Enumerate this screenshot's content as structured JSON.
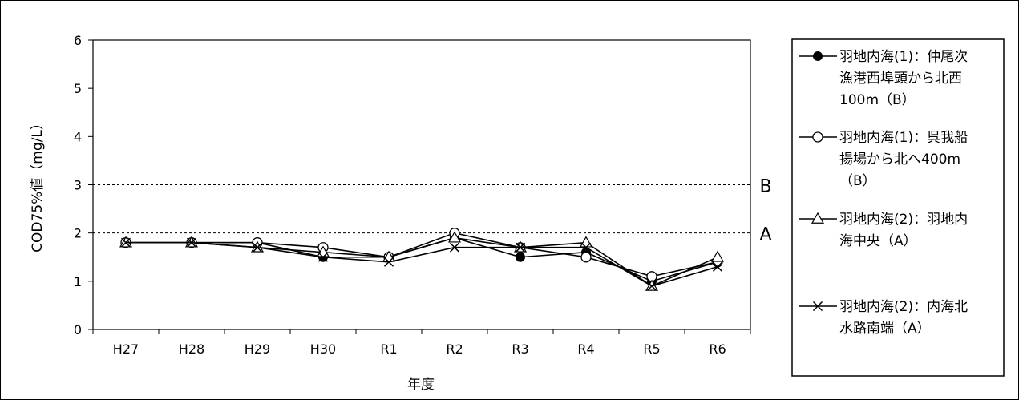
{
  "chart_data": {
    "type": "line",
    "title": "",
    "xlabel": "年度",
    "ylabel": "COD75%値（mg/L）",
    "ylim": [
      0,
      6
    ],
    "yticks": [
      0,
      1,
      2,
      3,
      4,
      5,
      6
    ],
    "categories": [
      "H27",
      "H28",
      "H29",
      "H30",
      "R1",
      "R2",
      "R3",
      "R4",
      "R5",
      "R6"
    ],
    "grid": false,
    "legend_position": "right",
    "reference_lines": [
      {
        "label": "B",
        "value": 3,
        "style": "dashed"
      },
      {
        "label": "A",
        "value": 2,
        "style": "dashed"
      }
    ],
    "series": [
      {
        "name": "羽地内海(1)：仲尾次漁港西埠頭から北西100m（B）",
        "name_lines": [
          "羽地内海(1)：仲尾次",
          "漁港西埠頭から北西",
          "100m（B）"
        ],
        "marker": "filled-circle",
        "values": [
          1.8,
          1.8,
          1.8,
          1.5,
          1.5,
          1.9,
          1.5,
          1.6,
          1.0,
          1.4
        ]
      },
      {
        "name": "羽地内海(1)：呉我船揚場から北へ400m（B）",
        "name_lines": [
          "羽地内海(1)：呉我船",
          "揚場から北へ400m",
          "（B）"
        ],
        "marker": "open-circle",
        "values": [
          1.8,
          1.8,
          1.8,
          1.7,
          1.5,
          2.0,
          1.7,
          1.5,
          1.1,
          1.4
        ]
      },
      {
        "name": "羽地内海(2)：羽地内海中央（A）",
        "name_lines": [
          "羽地内海(2)：羽地内",
          "海中央（A）"
        ],
        "marker": "open-triangle",
        "values": [
          1.8,
          1.8,
          1.7,
          1.6,
          1.5,
          1.9,
          1.7,
          1.8,
          0.9,
          1.5
        ]
      },
      {
        "name": "羽地内海(2)：内海北水路南端（A）",
        "name_lines": [
          "羽地内海(2)：内海北",
          "水路南端（A）"
        ],
        "marker": "x",
        "values": [
          1.8,
          1.8,
          1.7,
          1.5,
          1.4,
          1.7,
          1.7,
          1.7,
          0.9,
          1.3
        ]
      }
    ]
  }
}
